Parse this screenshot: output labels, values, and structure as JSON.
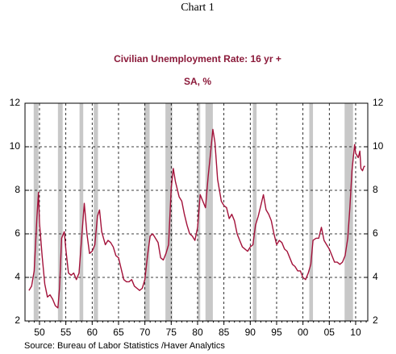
{
  "chart_data": {
    "type": "line",
    "header": "Chart 1",
    "title": "Civilian Unemployment Rate: 16 yr +",
    "subtitle": "SA, %",
    "source": "Source:  Bureau of Labor Statistics /Haver Analytics",
    "xlim": [
      1947.25,
      2012.3
    ],
    "ylim": [
      2,
      12
    ],
    "yticks": [
      2,
      4,
      6,
      8,
      10,
      12
    ],
    "xticks": [
      {
        "value": 1950,
        "label": "50"
      },
      {
        "value": 1955,
        "label": "55"
      },
      {
        "value": 1960,
        "label": "60"
      },
      {
        "value": 1965,
        "label": "65"
      },
      {
        "value": 1970,
        "label": "70"
      },
      {
        "value": 1975,
        "label": "75"
      },
      {
        "value": 1980,
        "label": "80"
      },
      {
        "value": 1985,
        "label": "85"
      },
      {
        "value": 1990,
        "label": "90"
      },
      {
        "value": 1995,
        "label": "95"
      },
      {
        "value": 2000,
        "label": "00"
      },
      {
        "value": 2005,
        "label": "05"
      },
      {
        "value": 2010,
        "label": "10"
      }
    ],
    "grid": true,
    "recession_color": "#c8c8c8",
    "recessions": [
      [
        1948.9,
        1949.8
      ],
      [
        1953.5,
        1954.4
      ],
      [
        1957.6,
        1958.3
      ],
      [
        1960.3,
        1961.1
      ],
      [
        1969.9,
        1970.9
      ],
      [
        1973.9,
        1975.2
      ],
      [
        1980.0,
        1980.5
      ],
      [
        1981.5,
        1982.9
      ],
      [
        1990.5,
        1991.2
      ],
      [
        2001.2,
        2001.9
      ],
      [
        2007.9,
        2009.5
      ]
    ],
    "series": [
      {
        "name": "Civilian Unemployment Rate",
        "color": "#a3123a",
        "x": [
          1948.0,
          1948.5,
          1949.0,
          1949.5,
          1949.8,
          1950.0,
          1950.5,
          1951.0,
          1951.5,
          1952.0,
          1952.5,
          1953.0,
          1953.5,
          1953.8,
          1954.2,
          1954.7,
          1955.0,
          1955.5,
          1956.0,
          1956.5,
          1957.0,
          1957.5,
          1958.0,
          1958.5,
          1959.0,
          1959.5,
          1960.0,
          1960.5,
          1961.0,
          1961.4,
          1961.8,
          1962.5,
          1963.0,
          1963.5,
          1964.0,
          1964.5,
          1965.0,
          1965.5,
          1966.0,
          1966.5,
          1967.0,
          1967.5,
          1968.0,
          1968.5,
          1969.0,
          1969.5,
          1970.0,
          1970.5,
          1971.0,
          1971.5,
          1972.0,
          1972.5,
          1973.0,
          1973.5,
          1974.0,
          1974.5,
          1975.0,
          1975.4,
          1975.8,
          1976.5,
          1977.0,
          1977.5,
          1978.0,
          1978.5,
          1979.0,
          1979.5,
          1980.0,
          1980.5,
          1981.0,
          1981.5,
          1982.0,
          1982.5,
          1982.9,
          1983.3,
          1983.8,
          1984.5,
          1985.0,
          1985.5,
          1986.0,
          1986.5,
          1987.0,
          1987.5,
          1988.0,
          1988.5,
          1989.0,
          1989.5,
          1990.0,
          1990.5,
          1991.0,
          1991.5,
          1992.0,
          1992.5,
          1993.0,
          1993.5,
          1994.0,
          1994.5,
          1995.0,
          1995.5,
          1996.0,
          1996.5,
          1997.0,
          1997.5,
          1998.0,
          1998.5,
          1999.0,
          1999.5,
          2000.0,
          2000.5,
          2001.0,
          2001.5,
          2001.9,
          2002.5,
          2003.0,
          2003.5,
          2004.0,
          2004.5,
          2005.0,
          2005.5,
          2006.0,
          2006.5,
          2007.0,
          2007.5,
          2008.0,
          2008.5,
          2008.9,
          2009.3,
          2009.8,
          2010.0,
          2010.5,
          2010.8,
          2011.0,
          2011.3,
          2011.6,
          2011.8
        ],
        "values": [
          3.4,
          3.6,
          4.3,
          6.7,
          7.9,
          6.5,
          5.0,
          3.7,
          3.1,
          3.2,
          3.0,
          2.7,
          2.6,
          3.5,
          5.8,
          6.1,
          5.3,
          4.2,
          4.1,
          4.2,
          3.9,
          4.2,
          5.8,
          7.4,
          6.0,
          5.1,
          5.2,
          5.5,
          6.8,
          7.1,
          6.1,
          5.5,
          5.7,
          5.6,
          5.4,
          5.0,
          4.9,
          4.4,
          3.9,
          3.8,
          3.8,
          3.9,
          3.6,
          3.5,
          3.4,
          3.5,
          3.9,
          5.0,
          5.9,
          6.0,
          5.8,
          5.6,
          4.9,
          4.8,
          5.1,
          5.5,
          8.1,
          9.0,
          8.4,
          7.7,
          7.5,
          6.9,
          6.4,
          6.0,
          5.9,
          5.7,
          6.3,
          7.8,
          7.5,
          7.2,
          8.6,
          9.8,
          10.8,
          10.2,
          8.5,
          7.5,
          7.3,
          7.2,
          6.7,
          6.9,
          6.6,
          6.0,
          5.7,
          5.4,
          5.3,
          5.2,
          5.4,
          5.5,
          6.4,
          6.8,
          7.3,
          7.8,
          7.1,
          6.9,
          6.6,
          6.0,
          5.5,
          5.7,
          5.6,
          5.3,
          5.2,
          4.9,
          4.6,
          4.5,
          4.3,
          4.3,
          4.0,
          3.9,
          4.2,
          4.6,
          5.7,
          5.8,
          5.8,
          6.3,
          5.7,
          5.5,
          5.3,
          5.0,
          4.7,
          4.7,
          4.6,
          4.7,
          5.0,
          5.8,
          7.2,
          8.9,
          10.1,
          9.7,
          9.5,
          9.8,
          9.0,
          8.9,
          9.1,
          9.1
        ]
      }
    ]
  }
}
